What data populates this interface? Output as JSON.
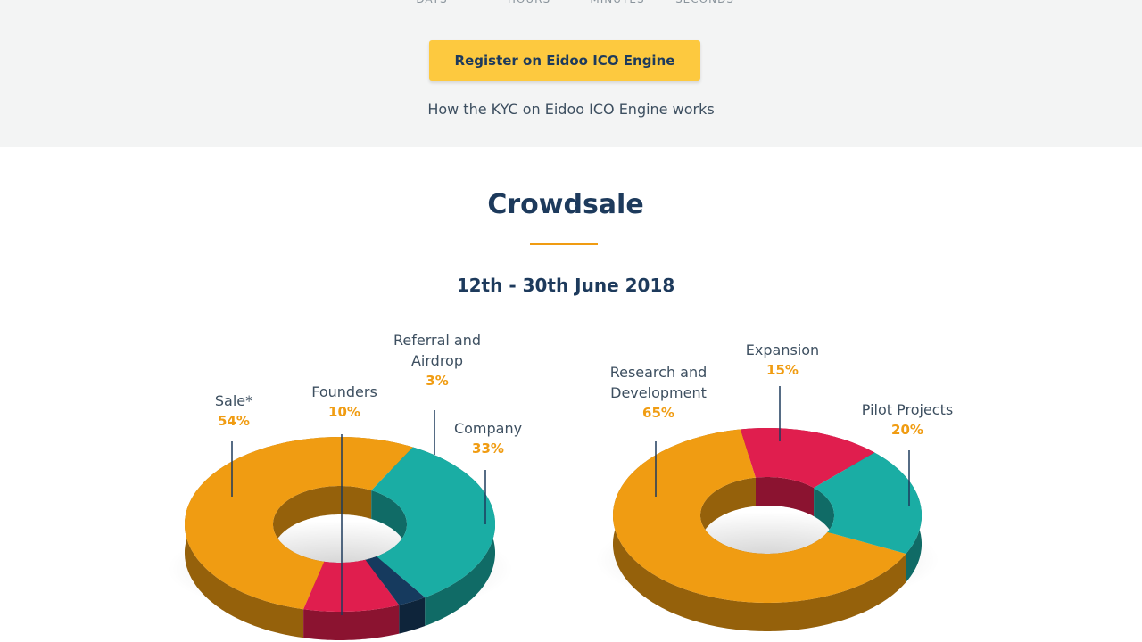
{
  "countdown_labels": [
    "DAYS",
    "HOURS",
    "MINUTES",
    "SECONDS"
  ],
  "register_button": "Register on Eidoo ICO Engine",
  "kyc_link": "How the KYC on Eidoo ICO Engine works",
  "section": {
    "title": "Crowdsale",
    "dates": "12th - 30th June 2018"
  },
  "chart_data": [
    {
      "type": "pie",
      "categories": [
        "Sale*",
        "Founders",
        "Referral and Airdrop",
        "Company"
      ],
      "values": [
        54,
        10,
        3,
        33
      ],
      "value_labels": [
        "54%",
        "10%",
        "3%",
        "33%"
      ],
      "colors": [
        "#f09c12",
        "#e01e4e",
        "#163a5e",
        "#1aada4"
      ]
    },
    {
      "type": "pie",
      "categories": [
        "Research and Development",
        "Expansion",
        "Pilot Projects"
      ],
      "values": [
        65,
        15,
        20
      ],
      "value_labels": [
        "65%",
        "15%",
        "20%"
      ],
      "colors": [
        "#f09c12",
        "#e01e4e",
        "#1aada4"
      ]
    }
  ]
}
